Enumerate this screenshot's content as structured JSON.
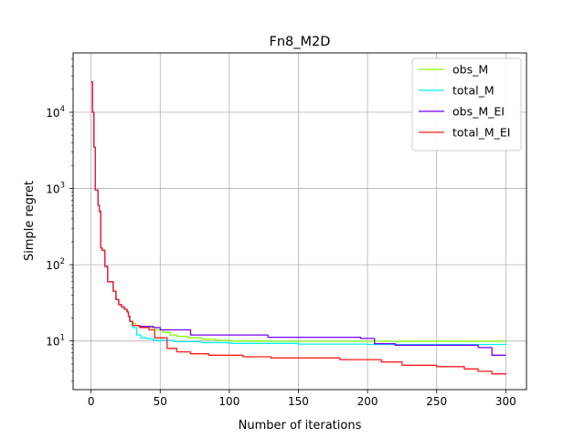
{
  "chart_data": {
    "type": "line",
    "title": "Fn8_M2D",
    "xlabel": "Number of iterations",
    "ylabel": "Simple regret",
    "xlim": [
      -13,
      315
    ],
    "ylim": [
      2.3,
      60000
    ],
    "yscale": "log",
    "grid": true,
    "legend_position": "top-right",
    "x_ticks": [
      0,
      50,
      100,
      150,
      200,
      250,
      300
    ],
    "y_ticks": [
      {
        "value": 10,
        "base": "10",
        "exp": "1"
      },
      {
        "value": 100,
        "base": "10",
        "exp": "2"
      },
      {
        "value": 1000,
        "base": "10",
        "exp": "3"
      },
      {
        "value": 10000,
        "base": "10",
        "exp": "4"
      }
    ],
    "series": [
      {
        "name": "obs_M",
        "color": "#80ff00",
        "points": [
          [
            0,
            25000
          ],
          [
            1,
            10000
          ],
          [
            2,
            3500
          ],
          [
            3,
            950
          ],
          [
            5,
            600
          ],
          [
            6,
            500
          ],
          [
            7,
            165
          ],
          [
            8,
            155
          ],
          [
            10,
            95
          ],
          [
            12,
            60
          ],
          [
            16,
            45
          ],
          [
            18,
            35
          ],
          [
            20,
            30
          ],
          [
            22,
            28
          ],
          [
            24,
            26
          ],
          [
            26,
            24
          ],
          [
            27,
            21
          ],
          [
            28,
            18
          ],
          [
            30,
            17
          ],
          [
            32,
            16
          ],
          [
            34,
            15.5
          ],
          [
            40,
            15
          ],
          [
            46,
            14
          ],
          [
            52,
            13
          ],
          [
            57,
            12
          ],
          [
            62,
            11.5
          ],
          [
            70,
            11
          ],
          [
            80,
            10.5
          ],
          [
            90,
            10.2
          ],
          [
            100,
            10
          ],
          [
            130,
            9.9
          ],
          [
            300,
            9.7
          ]
        ]
      },
      {
        "name": "total_M",
        "color": "#00f2f2",
        "points": [
          [
            0,
            25000
          ],
          [
            1,
            10000
          ],
          [
            2,
            3500
          ],
          [
            3,
            950
          ],
          [
            5,
            600
          ],
          [
            6,
            500
          ],
          [
            7,
            165
          ],
          [
            8,
            155
          ],
          [
            10,
            95
          ],
          [
            12,
            60
          ],
          [
            16,
            45
          ],
          [
            18,
            35
          ],
          [
            20,
            30
          ],
          [
            22,
            28
          ],
          [
            24,
            26
          ],
          [
            26,
            24
          ],
          [
            27,
            21
          ],
          [
            28,
            18
          ],
          [
            30,
            15
          ],
          [
            33,
            12
          ],
          [
            36,
            11
          ],
          [
            40,
            10.7
          ],
          [
            45,
            10.2
          ],
          [
            60,
            9.8
          ],
          [
            80,
            9.5
          ],
          [
            100,
            9.3
          ],
          [
            150,
            9.1
          ],
          [
            200,
            9
          ],
          [
            250,
            9
          ],
          [
            300,
            8.9
          ]
        ]
      },
      {
        "name": "obs_M_EI",
        "color": "#7000ff",
        "points": [
          [
            0,
            25000
          ],
          [
            1,
            10000
          ],
          [
            2,
            3500
          ],
          [
            3,
            950
          ],
          [
            5,
            600
          ],
          [
            6,
            500
          ],
          [
            7,
            165
          ],
          [
            8,
            155
          ],
          [
            10,
            95
          ],
          [
            12,
            60
          ],
          [
            16,
            45
          ],
          [
            18,
            35
          ],
          [
            20,
            30
          ],
          [
            22,
            28
          ],
          [
            24,
            26
          ],
          [
            26,
            24
          ],
          [
            27,
            21
          ],
          [
            28,
            18
          ],
          [
            30,
            16
          ],
          [
            35,
            15.5
          ],
          [
            45,
            15
          ],
          [
            50,
            14
          ],
          [
            72,
            12
          ],
          [
            128,
            11.2
          ],
          [
            195,
            10.8
          ],
          [
            205,
            9.2
          ],
          [
            220,
            8.8
          ],
          [
            280,
            8.2
          ],
          [
            290,
            6.5
          ],
          [
            300,
            6.5
          ]
        ]
      },
      {
        "name": "total_M_EI",
        "color": "#ff1a1a",
        "points": [
          [
            0,
            25000
          ],
          [
            1,
            10000
          ],
          [
            2,
            3500
          ],
          [
            3,
            950
          ],
          [
            5,
            600
          ],
          [
            6,
            500
          ],
          [
            7,
            165
          ],
          [
            8,
            155
          ],
          [
            10,
            95
          ],
          [
            12,
            60
          ],
          [
            16,
            45
          ],
          [
            18,
            35
          ],
          [
            20,
            30
          ],
          [
            22,
            28
          ],
          [
            24,
            26
          ],
          [
            26,
            24
          ],
          [
            27,
            21
          ],
          [
            28,
            18
          ],
          [
            30,
            16
          ],
          [
            35,
            15
          ],
          [
            42,
            14
          ],
          [
            46,
            11
          ],
          [
            55,
            8
          ],
          [
            62,
            7.2
          ],
          [
            72,
            6.8
          ],
          [
            85,
            6.5
          ],
          [
            110,
            6.2
          ],
          [
            130,
            6
          ],
          [
            180,
            5.7
          ],
          [
            210,
            5.3
          ],
          [
            225,
            4.8
          ],
          [
            250,
            4.6
          ],
          [
            270,
            4.3
          ],
          [
            280,
            4
          ],
          [
            290,
            3.7
          ],
          [
            300,
            3.6
          ]
        ]
      }
    ]
  }
}
